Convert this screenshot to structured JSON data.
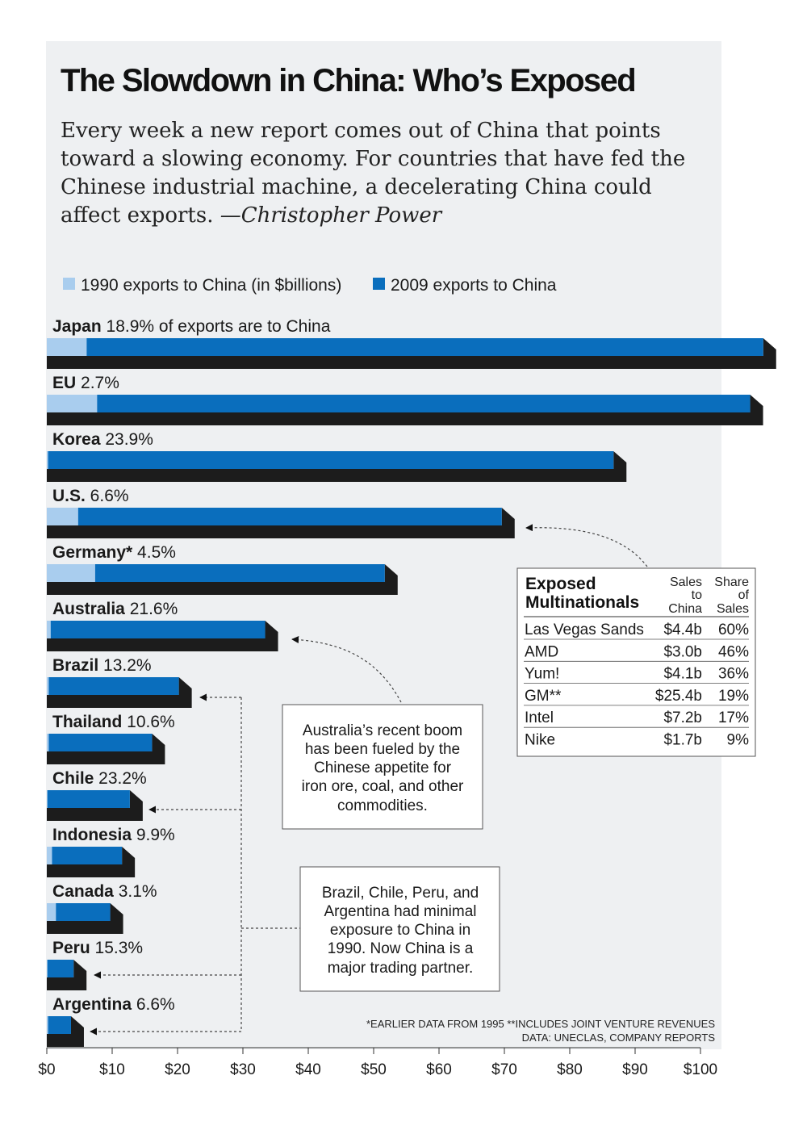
{
  "title": "The Slowdown in China: Who’s Exposed",
  "dek": "Every week a new report comes out of China that points toward a slowing economy. For countries that have fed the Chinese industrial machine, a decelerating China could affect exports.",
  "byline": "—Christopher Power",
  "colors": {
    "light": "#a9cdee",
    "dark": "#0a6ebd",
    "shadow": "#1c1c1c",
    "panel": "#eef0f2"
  },
  "chart_data": {
    "type": "bar",
    "orientation": "horizontal",
    "xlim": [
      0,
      100
    ],
    "x_ticks": [
      "$0",
      "$10",
      "$20",
      "$30",
      "$40",
      "$50",
      "$60",
      "$70",
      "$80",
      "$90",
      "$100"
    ],
    "series": [
      {
        "name": "1990 exports to China (in $billions)",
        "color": "#a9cdee"
      },
      {
        "name": "2009 exports to China",
        "color": "#0a6ebd"
      }
    ],
    "countries": [
      {
        "name": "Japan",
        "pct": "18.9% of exports are to China",
        "v1990": 6.1,
        "v2009": 109.6
      },
      {
        "name": "EU",
        "pct": "2.7%",
        "v1990": 7.7,
        "v2009": 107.6
      },
      {
        "name": "Korea",
        "pct": "23.9%",
        "v1990": 0.2,
        "v2009": 86.7
      },
      {
        "name": "U.S.",
        "pct": "6.6%",
        "v1990": 4.8,
        "v2009": 69.6
      },
      {
        "name": "Germany*",
        "pct": "4.5%",
        "v1990": 7.4,
        "v2009": 51.7
      },
      {
        "name": "Australia",
        "pct": "21.6%",
        "v1990": 0.6,
        "v2009": 33.4
      },
      {
        "name": "Brazil",
        "pct": "13.2%",
        "v1990": 0.3,
        "v2009": 20.2
      },
      {
        "name": "Thailand",
        "pct": "10.6%",
        "v1990": 0.3,
        "v2009": 16.1
      },
      {
        "name": "Chile",
        "pct": "23.2%",
        "v1990": 0.1,
        "v2009": 12.7
      },
      {
        "name": "Indonesia",
        "pct": "9.9%",
        "v1990": 0.8,
        "v2009": 11.5
      },
      {
        "name": "Canada",
        "pct": "3.1%",
        "v1990": 1.4,
        "v2009": 9.7
      },
      {
        "name": "Peru",
        "pct": "15.3%",
        "v1990": 0.1,
        "v2009": 4.1
      },
      {
        "name": "Argentina",
        "pct": "6.6%",
        "v1990": 0.2,
        "v2009": 3.7
      }
    ]
  },
  "notes": {
    "australia": [
      "Australia’s recent boom",
      "has been fueled by the",
      "Chinese appetite for",
      "iron ore, coal, and other",
      "commodities."
    ],
    "latam": [
      "Brazil, Chile, Peru, and",
      "Argentina had minimal",
      "exposure to China in",
      "1990. Now China is a",
      "major trading partner."
    ]
  },
  "multinationals": {
    "title": [
      "Exposed",
      "Multinationals"
    ],
    "col1": [
      "Sales",
      "to",
      "China"
    ],
    "col2": [
      "Share",
      "of",
      "Sales"
    ],
    "rows": [
      {
        "name": "Las Vegas Sands",
        "sales": "$4.4b",
        "share": "60%"
      },
      {
        "name": "AMD",
        "sales": "$3.0b",
        "share": "46%"
      },
      {
        "name": "Yum!",
        "sales": "$4.1b",
        "share": "36%"
      },
      {
        "name": "GM**",
        "sales": "$25.4b",
        "share": "19%"
      },
      {
        "name": "Intel",
        "sales": "$7.2b",
        "share": "17%"
      },
      {
        "name": "Nike",
        "sales": "$1.7b",
        "share": "9%"
      }
    ]
  },
  "footnotes": [
    "*EARLIER DATA FROM 1995  **INCLUDES JOINT VENTURE REVENUES",
    "DATA: UNECLAS, COMPANY REPORTS"
  ]
}
